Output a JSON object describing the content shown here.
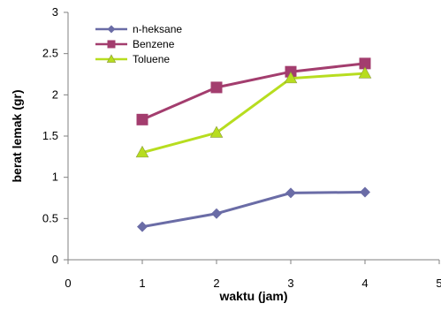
{
  "chart_data": {
    "type": "line",
    "title": "",
    "xlabel": "waktu (jam)",
    "ylabel": "berat lemak (gr)",
    "xlim": [
      0,
      5
    ],
    "ylim": [
      0,
      3
    ],
    "x_ticks": [
      0,
      1,
      2,
      3,
      4,
      5
    ],
    "y_ticks": [
      0,
      0.5,
      1,
      1.5,
      2,
      2.5,
      3
    ],
    "x_tick_labels": [
      "0",
      "1",
      "2",
      "3",
      "4",
      "5"
    ],
    "y_tick_labels": [
      "0",
      "0.5",
      "1",
      "1.5",
      "2",
      "2.5",
      "3"
    ],
    "grid": false,
    "legend_position": "top-left",
    "series": [
      {
        "name": "n-heksane",
        "color": "#6A6CA6",
        "marker": "diamond",
        "x": [
          1,
          2,
          3,
          4
        ],
        "y": [
          0.4,
          0.56,
          0.81,
          0.82
        ]
      },
      {
        "name": "Benzene",
        "color": "#A33D6E",
        "marker": "square",
        "x": [
          1,
          2,
          3,
          4
        ],
        "y": [
          1.7,
          2.09,
          2.28,
          2.38
        ]
      },
      {
        "name": "Toluene",
        "color": "#B7DD1F",
        "marker": "triangle",
        "x": [
          1,
          2,
          3,
          4
        ],
        "y": [
          1.3,
          1.54,
          2.2,
          2.26
        ]
      }
    ]
  }
}
